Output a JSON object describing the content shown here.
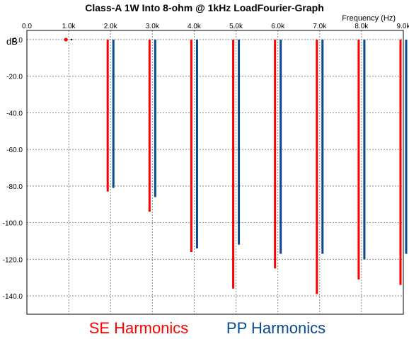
{
  "chart_data": {
    "type": "bar",
    "title": "Class-A 1W Into 8-ohm @ 1kHz LoadFourier-Graph",
    "xlabel": "Frequency  (Hz)",
    "ylabel": "dB",
    "xlim": [
      0,
      9000
    ],
    "ylim": [
      -150,
      5
    ],
    "grid": true,
    "x_tick_labels": [
      "0.0",
      "1.0k",
      "2.0k",
      "3.0k",
      "4.0k",
      "5.0k",
      "6.0k",
      "7.0k",
      "8.0k",
      "9.0k"
    ],
    "x_tick_values": [
      0,
      1000,
      2000,
      3000,
      4000,
      5000,
      6000,
      7000,
      8000,
      9000
    ],
    "y_tick_labels": [
      "0.0",
      "-20.0",
      "-40.0",
      "-60.0",
      "-80.0",
      "-100.0",
      "-120.0",
      "-140.0"
    ],
    "y_tick_values": [
      0,
      -20,
      -40,
      -60,
      -80,
      -100,
      -120,
      -140
    ],
    "series": [
      {
        "name": "SE Harmonics",
        "color": "#ff0000",
        "x": [
          1000,
          2000,
          3000,
          4000,
          5000,
          6000,
          7000,
          8000,
          9000
        ],
        "values": [
          0,
          -83,
          -94,
          -116,
          -136,
          -125,
          -139,
          -131,
          -134
        ]
      },
      {
        "name": "PP Harmonics",
        "color": "#0a4a8c",
        "x": [
          1000,
          2000,
          3000,
          4000,
          5000,
          6000,
          7000,
          8000,
          9000
        ],
        "values": [
          0,
          -81,
          -86,
          -114,
          -112,
          -117,
          -117,
          -120,
          -117
        ]
      }
    ]
  }
}
